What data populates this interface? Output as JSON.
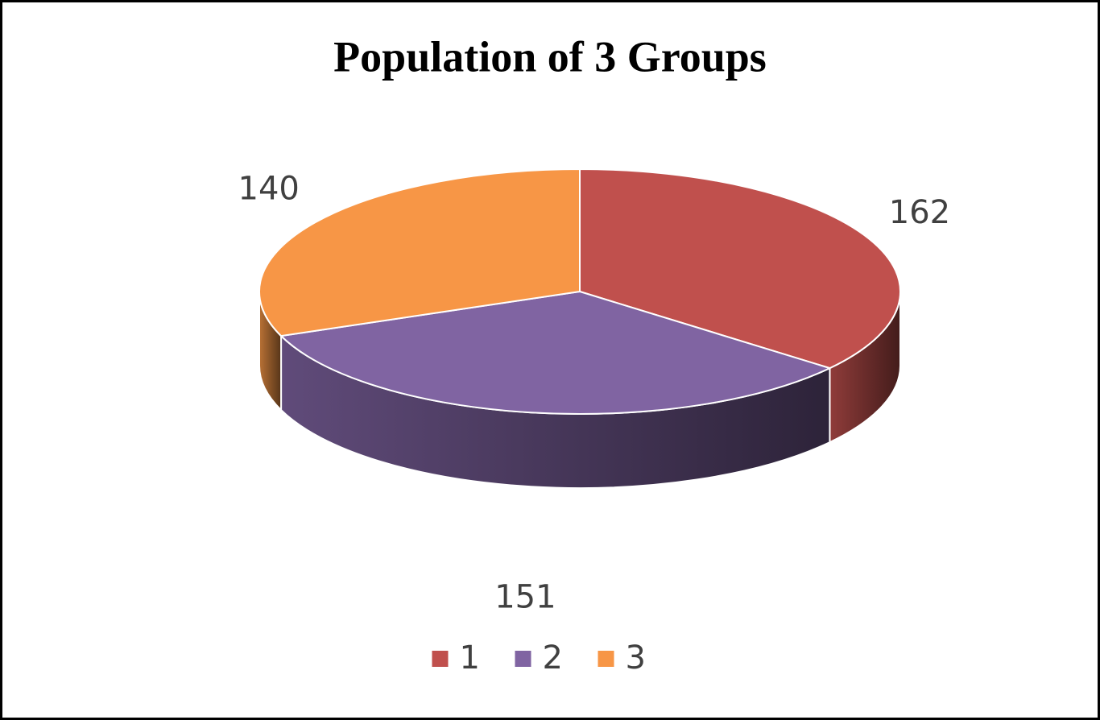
{
  "chart_data": {
    "type": "pie",
    "title": "Population of 3 Groups",
    "categories": [
      "1",
      "2",
      "3"
    ],
    "values": [
      162,
      151,
      140
    ],
    "colors": [
      "#c0504d",
      "#8064a2",
      "#f79646"
    ],
    "legend": "bottom"
  }
}
